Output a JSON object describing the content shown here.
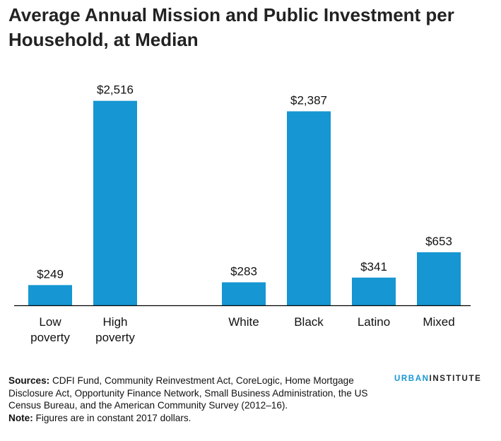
{
  "title": "Average Annual Mission and Public Investment per Household, at Median",
  "chart_data": {
    "type": "bar",
    "title": "Average Annual Mission and Public Investment per Household, at Median",
    "xlabel": "",
    "ylabel": "",
    "ylim": [
      0,
      2800
    ],
    "grid": false,
    "bar_color": "#1696d2",
    "groups": [
      {
        "categories": [
          [
            "Low",
            "poverty"
          ],
          [
            "High",
            "poverty"
          ]
        ],
        "values": [
          249,
          2516
        ],
        "labels": [
          "$249",
          "$2,516"
        ]
      },
      {
        "categories": [
          [
            "White"
          ],
          [
            "Black"
          ],
          [
            "Latino"
          ],
          [
            "Mixed"
          ]
        ],
        "values": [
          283,
          2387,
          341,
          653
        ],
        "labels": [
          "$283",
          "$2,387",
          "$341",
          "$653"
        ]
      }
    ]
  },
  "footer": {
    "sources_label": "Sources:",
    "sources_text": " CDFI Fund, Community Reinvestment Act, CoreLogic, Home Mortgage Disclosure Act, Opportunity Finance Network, Small Business Administration, the US Census Bureau, and the American Community Survey (2012–16).",
    "note_label": "Note:",
    "note_text": " Figures are in constant 2017 dollars."
  },
  "brand": {
    "part1": "URBAN",
    "part2": "INSTITUTE"
  }
}
